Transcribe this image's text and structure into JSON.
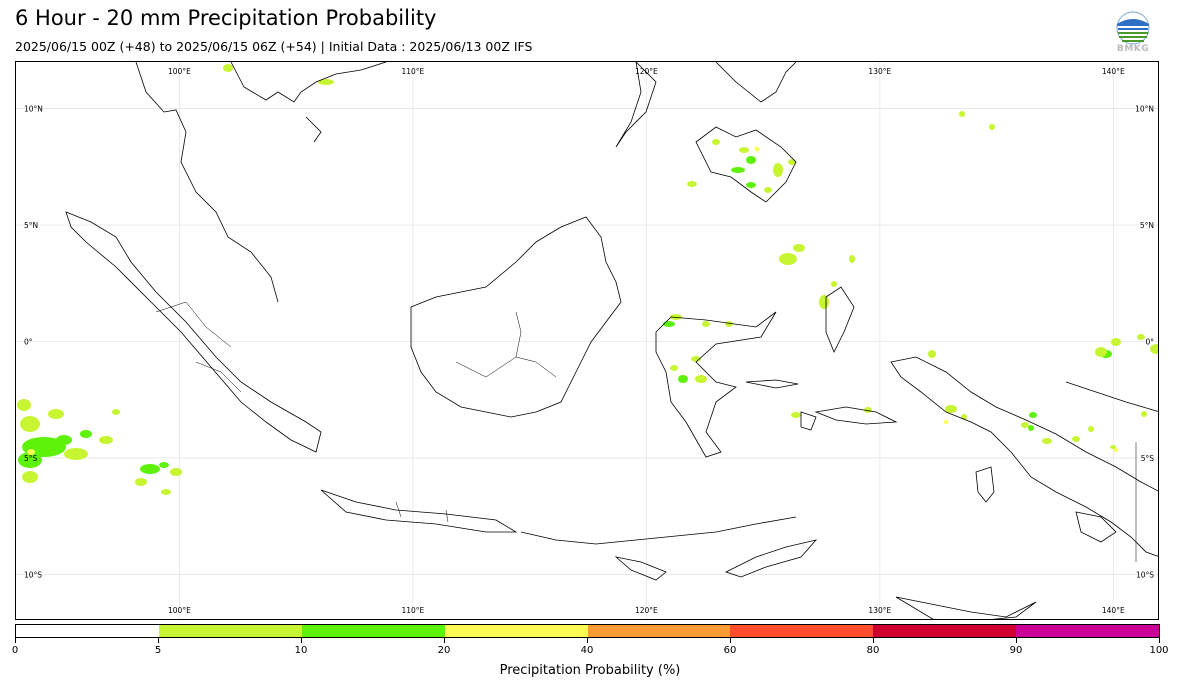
{
  "header": {
    "title": "6 Hour - 20 mm Precipitation Probability",
    "subtitle": "2025/06/15 00Z (+48) to 2025/06/15 06Z (+54) | Initial Data : 2025/06/13 00Z IFS",
    "logo_text": "BMKG"
  },
  "map": {
    "lon_labels_top": [
      "100°E",
      "110°E",
      "120°E",
      "130°E",
      "140°E"
    ],
    "lon_labels_bottom": [
      "100°E",
      "110°E",
      "120°E",
      "130°E",
      "140°E"
    ],
    "lat_labels_left": [
      "10°N",
      "5°N",
      "0°",
      "5°S",
      "10°S"
    ],
    "lat_labels_right": [
      "10°N",
      "5°N",
      "0°",
      "5°S",
      "10°S"
    ],
    "lon_range": [
      93,
      142
    ],
    "lat_range": [
      12,
      -12
    ],
    "grid_lons": [
      100,
      110,
      120,
      130,
      140
    ],
    "grid_lats": [
      10,
      5,
      0,
      -5,
      -10
    ]
  },
  "colorbar": {
    "title": "Precipitation Probability (%)",
    "ticks": [
      "0",
      "5",
      "10",
      "20",
      "40",
      "60",
      "80",
      "90",
      "100"
    ],
    "colors": [
      "#ffffff",
      "#c8f531",
      "#5ef10a",
      "#fdfc55",
      "#fe9b32",
      "#ff4d2d",
      "#cd0030",
      "#cc0098"
    ]
  },
  "icons": {
    "logo": "bmkg-logo-icon"
  }
}
